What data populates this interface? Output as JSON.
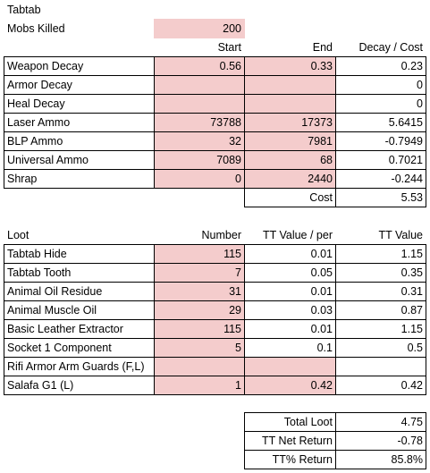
{
  "header": {
    "title": "Tabtab",
    "mobs_label": "Mobs Killed",
    "mobs_value": "200"
  },
  "decay_table": {
    "columns": [
      "Start",
      "End",
      "Decay / Cost"
    ],
    "rows": [
      [
        "Weapon Decay",
        "0.56",
        "0.33",
        "0.23"
      ],
      [
        "Armor Decay",
        null,
        null,
        "0"
      ],
      [
        "Heal Decay",
        null,
        null,
        "0"
      ],
      [
        "Laser Ammo",
        "73788",
        "17373",
        "5.6415"
      ],
      [
        "BLP Ammo",
        "32",
        "7981",
        "-0.7949"
      ],
      [
        "Universal Ammo",
        "7089",
        "68",
        "0.7021"
      ],
      [
        "Shrap",
        "0",
        "2440",
        "-0.244"
      ]
    ],
    "cost_label": "Cost",
    "cost_value": "5.53"
  },
  "loot_table": {
    "columns": [
      "Loot",
      "Number",
      "TT Value / per",
      "TT Value"
    ],
    "rows": [
      [
        "Tabtab Hide",
        "115",
        "0.01",
        "1.15"
      ],
      [
        "Tabtab Tooth",
        "7",
        "0.05",
        "0.35"
      ],
      [
        "Animal Oil Residue",
        "31",
        "0.01",
        "0.31"
      ],
      [
        "Animal Muscle Oil",
        "29",
        "0.03",
        "0.87"
      ],
      [
        "Basic Leather Extractor",
        "115",
        "0.01",
        "1.15"
      ],
      [
        "Socket 1 Component",
        "5",
        "0.1",
        "0.5"
      ],
      [
        "Rifi Armor Arm Guards (F,L)",
        null,
        null,
        null
      ],
      [
        "Salafa G1 (L)",
        "1",
        "0.42",
        "0.42"
      ]
    ]
  },
  "summary": {
    "rows": [
      [
        "Total Loot",
        "4.75"
      ],
      [
        "TT Net Return",
        "-0.78"
      ],
      [
        "TT% Return",
        "85.8%"
      ]
    ]
  }
}
